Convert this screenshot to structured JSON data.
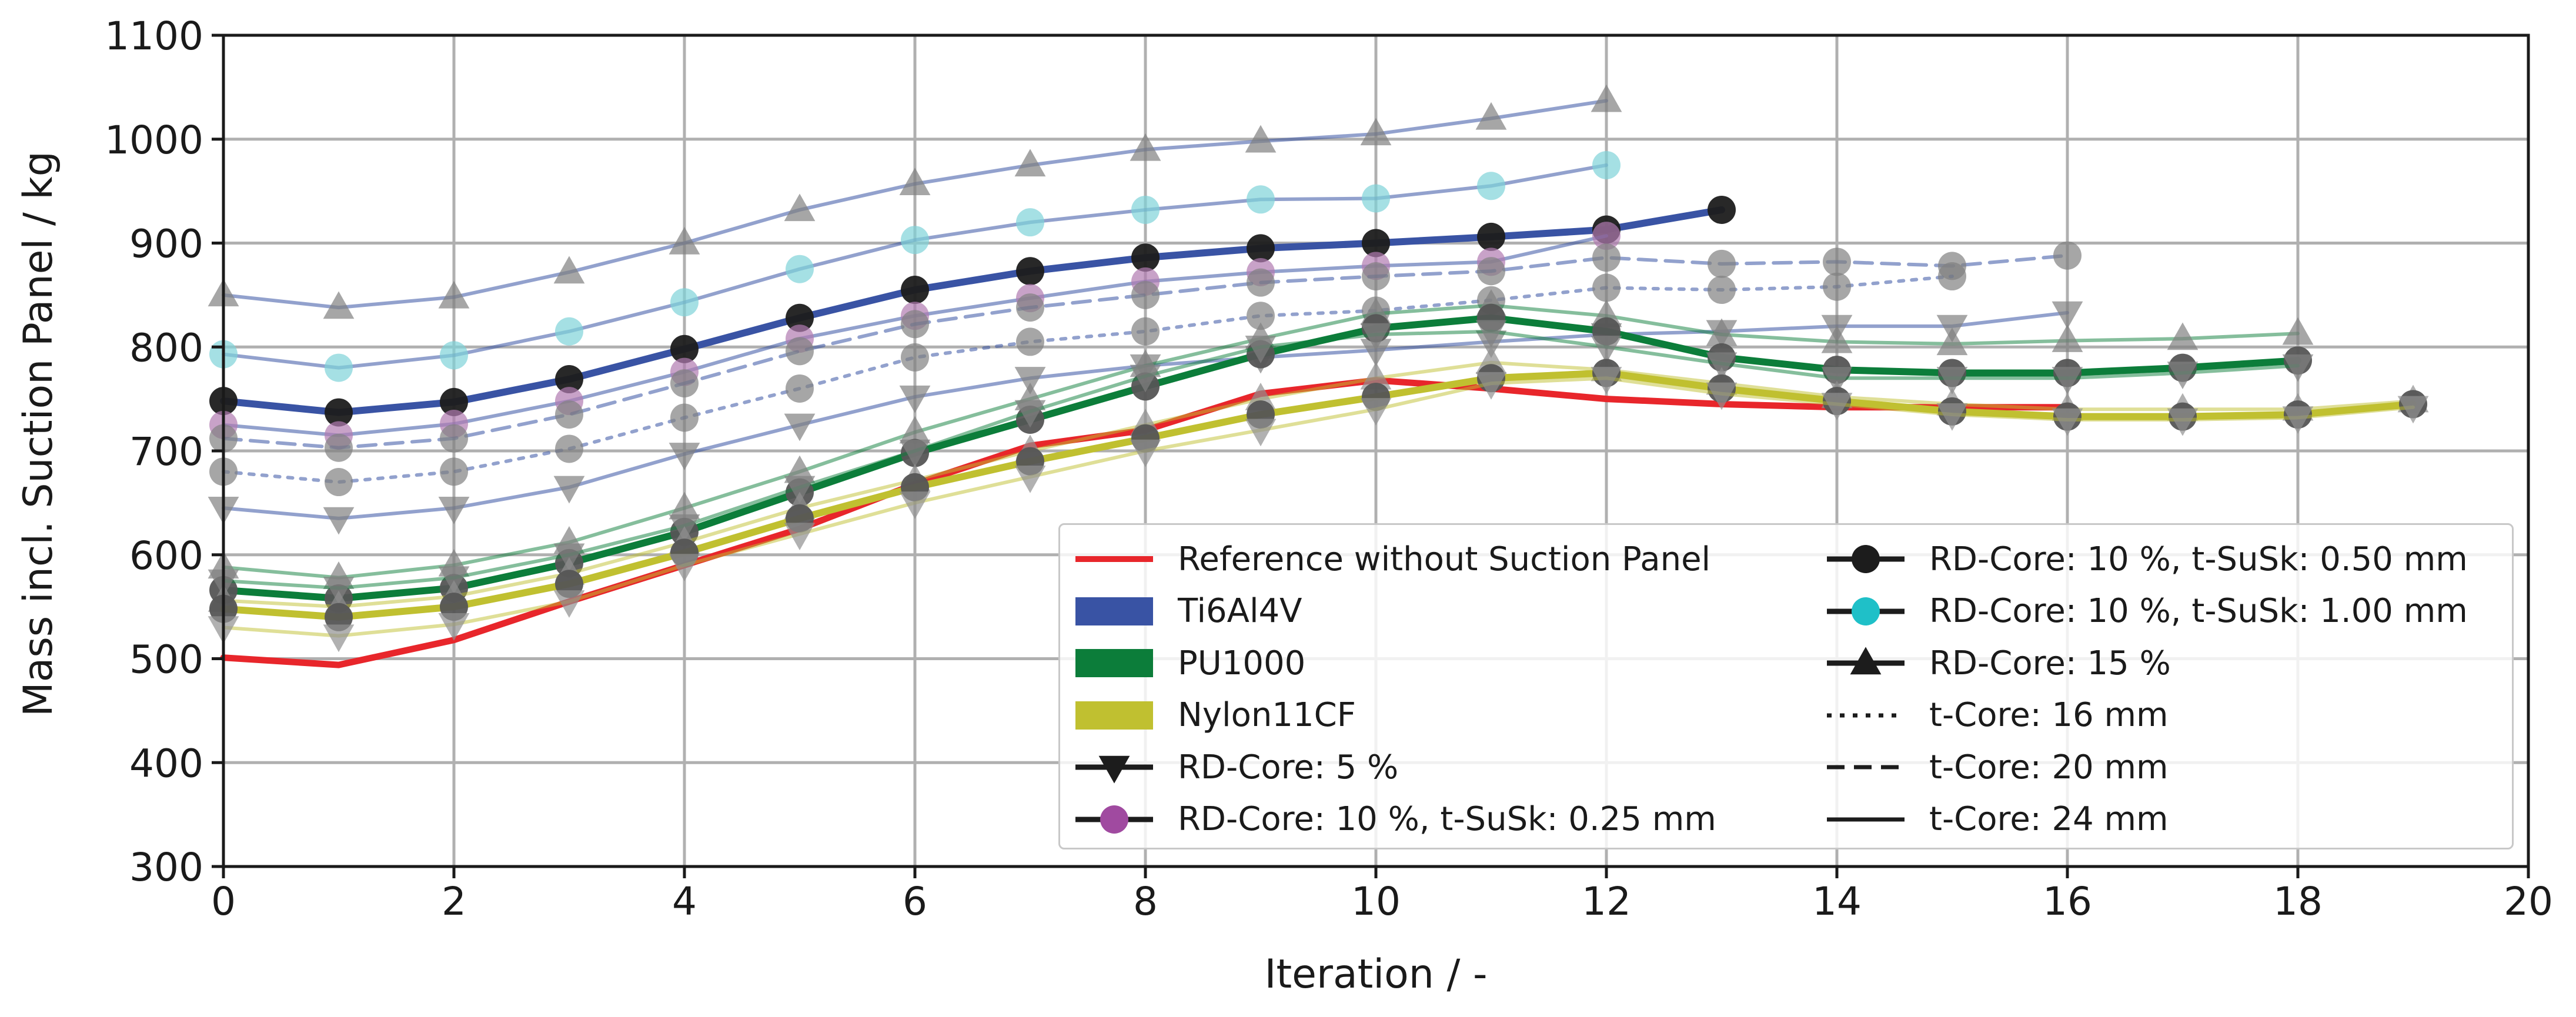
{
  "chart_data": {
    "type": "line",
    "title": "",
    "xlabel": "Iteration / -",
    "ylabel": "Mass incl. Suction Panel / kg",
    "xlim": [
      0,
      20
    ],
    "ylim": [
      300,
      1100
    ],
    "xticks": [
      0,
      2,
      4,
      6,
      8,
      10,
      12,
      14,
      16,
      18,
      20
    ],
    "yticks": [
      300,
      400,
      500,
      600,
      700,
      800,
      900,
      1000,
      1100
    ],
    "grid": true,
    "legend_position": "lower-right",
    "colors": {
      "reference": "#e8262b",
      "Ti6Al4V": "#3953a4",
      "PU1000": "#0c7d3a",
      "Nylon11CF": "#c0c030",
      "marker_grey": "#555555",
      "marker_black": "#1c1c1c",
      "marker_cyan": "#7fd3d8",
      "marker_purple": "#a04aa0"
    },
    "legend": [
      {
        "label": "Reference without Suction Panel",
        "kind": "line",
        "color": "#e8262b"
      },
      {
        "label": "Ti6Al4V",
        "kind": "patch",
        "color": "#3953a4"
      },
      {
        "label": "PU1000",
        "kind": "patch",
        "color": "#0c7d3a"
      },
      {
        "label": "Nylon11CF",
        "kind": "patch",
        "color": "#c0c030"
      },
      {
        "label": "RD-Core: 5 %",
        "kind": "marker",
        "marker": "tri_down",
        "color": "#1c1c1c"
      },
      {
        "label": "RD-Core: 10 %, t-SuSk: 0.25 mm",
        "kind": "marker",
        "marker": "circle",
        "color": "#a04aa0"
      },
      {
        "label": "RD-Core: 10 %, t-SuSk: 0.50 mm",
        "kind": "marker",
        "marker": "circle",
        "color": "#1c1c1c"
      },
      {
        "label": "RD-Core: 10 %, t-SuSk: 1.00 mm",
        "kind": "marker",
        "marker": "circle",
        "color": "#1fc0c8"
      },
      {
        "label": "RD-Core: 15 %",
        "kind": "marker",
        "marker": "tri_up",
        "color": "#1c1c1c"
      },
      {
        "label": "t-Core: 16 mm",
        "kind": "dash",
        "style": "dotted",
        "color": "#1c1c1c"
      },
      {
        "label": "t-Core: 20 mm",
        "kind": "dash",
        "style": "dashed",
        "color": "#1c1c1c"
      },
      {
        "label": "t-Core: 24 mm",
        "kind": "dash",
        "style": "solid",
        "color": "#1c1c1c"
      }
    ],
    "series": [
      {
        "name": "Reference without Suction Panel",
        "color": "#e8262b",
        "style": "solid",
        "width": 11,
        "alpha": 1,
        "marker": "none",
        "marker_fill": "none",
        "x": [
          0,
          1,
          2,
          3,
          4,
          5,
          6,
          7,
          8,
          9,
          10,
          11,
          12,
          13,
          14,
          15,
          16
        ],
        "y": [
          501,
          494,
          518,
          555,
          590,
          625,
          668,
          705,
          720,
          755,
          768,
          760,
          750,
          745,
          742,
          742,
          742
        ]
      },
      {
        "name": "Ti6Al4V RD-Core 15 % t-Core 24 mm",
        "color": "#3953a4",
        "style": "solid",
        "width": 6,
        "alpha": 0.55,
        "marker": "tri_up",
        "marker_fill": "#808080",
        "x": [
          0,
          1,
          2,
          3,
          4,
          5,
          6,
          7,
          8,
          9,
          10,
          11,
          12
        ],
        "y": [
          850,
          838,
          848,
          872,
          900,
          932,
          957,
          975,
          990,
          998,
          1005,
          1020,
          1037
        ]
      },
      {
        "name": "Ti6Al4V RD-Core 10 % t-SuSk 1.00 mm",
        "color": "#3953a4",
        "style": "solid",
        "width": 6,
        "alpha": 0.55,
        "marker": "circle",
        "marker_fill": "#7fd3d8",
        "x": [
          0,
          1,
          2,
          3,
          4,
          5,
          6,
          7,
          8,
          9,
          10,
          11,
          12
        ],
        "y": [
          793,
          780,
          792,
          815,
          843,
          875,
          903,
          920,
          932,
          942,
          943,
          955,
          975
        ]
      },
      {
        "name": "Ti6Al4V RD-Core 10 % t-SuSk 0.50 mm t-Core 24 mm",
        "color": "#3953a4",
        "style": "solid",
        "width": 12,
        "alpha": 1,
        "marker": "circle",
        "marker_fill": "#1c1c1c",
        "x": [
          0,
          1,
          2,
          3,
          4,
          5,
          6,
          7,
          8,
          9,
          10,
          11,
          12,
          13
        ],
        "y": [
          748,
          737,
          747,
          769,
          798,
          828,
          855,
          873,
          886,
          895,
          900,
          906,
          913,
          932
        ]
      },
      {
        "name": "Ti6Al4V RD-Core 10 % t-SuSk 0.25 mm",
        "color": "#3953a4",
        "style": "solid",
        "width": 6,
        "alpha": 0.55,
        "marker": "circle",
        "marker_fill": "#b07ab0",
        "x": [
          0,
          1,
          2,
          3,
          4,
          5,
          6,
          7,
          8,
          9,
          10,
          11,
          12
        ],
        "y": [
          725,
          715,
          726,
          748,
          776,
          808,
          830,
          847,
          863,
          872,
          878,
          882,
          907
        ]
      },
      {
        "name": "Ti6Al4V RD-Core 10 % t-Core 20 mm",
        "color": "#3953a4",
        "style": "dashed",
        "width": 6,
        "alpha": 0.55,
        "marker": "circle",
        "marker_fill": "#808080",
        "x": [
          0,
          1,
          2,
          3,
          4,
          5,
          6,
          7,
          8,
          9,
          10,
          11,
          12,
          13,
          14,
          15,
          16
        ],
        "y": [
          712,
          703,
          712,
          735,
          765,
          796,
          822,
          838,
          850,
          862,
          868,
          873,
          886,
          880,
          882,
          878,
          888
        ]
      },
      {
        "name": "Ti6Al4V RD-Core 10 % t-Core 16 mm",
        "color": "#3953a4",
        "style": "dotted",
        "width": 6,
        "alpha": 0.55,
        "marker": "circle",
        "marker_fill": "#808080",
        "x": [
          0,
          1,
          2,
          3,
          4,
          5,
          6,
          7,
          8,
          9,
          10,
          11,
          12,
          13,
          14,
          15
        ],
        "y": [
          680,
          670,
          680,
          702,
          732,
          760,
          790,
          805,
          815,
          830,
          835,
          845,
          857,
          855,
          858,
          868
        ]
      },
      {
        "name": "Ti6Al4V RD-Core 5 %",
        "color": "#3953a4",
        "style": "solid",
        "width": 6,
        "alpha": 0.55,
        "marker": "tri_down",
        "marker_fill": "#808080",
        "x": [
          0,
          1,
          2,
          3,
          4,
          5,
          6,
          7,
          8,
          9,
          10,
          11,
          12,
          13,
          14,
          15,
          16
        ],
        "y": [
          645,
          635,
          645,
          665,
          697,
          725,
          752,
          770,
          782,
          790,
          797,
          805,
          812,
          815,
          820,
          820,
          833
        ]
      },
      {
        "name": "PU1000 RD-Core 15 %",
        "color": "#0c7d3a",
        "style": "solid",
        "width": 6,
        "alpha": 0.5,
        "marker": "tri_up",
        "marker_fill": "#808080",
        "x": [
          0,
          1,
          2,
          3,
          4,
          5,
          6,
          7,
          8,
          9,
          10,
          11,
          12,
          13,
          14,
          15,
          16,
          17,
          18
        ],
        "y": [
          588,
          578,
          590,
          612,
          645,
          680,
          718,
          750,
          782,
          808,
          832,
          840,
          830,
          812,
          805,
          803,
          806,
          808,
          813
        ]
      },
      {
        "name": "PU1000 RD-Core 10 % t-SuSk 0.50 mm",
        "color": "#0c7d3a",
        "style": "solid",
        "width": 12,
        "alpha": 1,
        "marker": "circle",
        "marker_fill": "#555555",
        "x": [
          0,
          1,
          2,
          3,
          4,
          5,
          6,
          7,
          8,
          9,
          10,
          11,
          12,
          13,
          14,
          15,
          16,
          17,
          18
        ],
        "y": [
          566,
          558,
          568,
          592,
          622,
          660,
          698,
          730,
          762,
          793,
          818,
          828,
          815,
          790,
          778,
          775,
          775,
          780,
          787
        ]
      },
      {
        "name": "PU1000 RD-Core 5 %",
        "color": "#0c7d3a",
        "style": "solid",
        "width": 6,
        "alpha": 0.5,
        "marker": "tri_down",
        "marker_fill": "#808080",
        "x": [
          0,
          1,
          2,
          3,
          4,
          5,
          6,
          7,
          8,
          9,
          10,
          11,
          12,
          13,
          14,
          15,
          16,
          17,
          18
        ],
        "y": [
          575,
          568,
          578,
          600,
          628,
          665,
          700,
          738,
          772,
          800,
          812,
          815,
          800,
          784,
          770,
          770,
          770,
          775,
          782
        ]
      },
      {
        "name": "Nylon11CF RD-Core 15 %",
        "color": "#c0c030",
        "style": "solid",
        "width": 6,
        "alpha": 0.5,
        "marker": "tri_up",
        "marker_fill": "#909090",
        "x": [
          0,
          1,
          2,
          3,
          4,
          5,
          6,
          7,
          8,
          9,
          10,
          11,
          12,
          13,
          14,
          15,
          16,
          17,
          18,
          19
        ],
        "y": [
          556,
          550,
          560,
          582,
          612,
          645,
          672,
          700,
          725,
          750,
          770,
          785,
          778,
          765,
          752,
          745,
          740,
          740,
          740,
          748
        ]
      },
      {
        "name": "Nylon11CF RD-Core 10 % t-SuSk 0.50 mm",
        "color": "#c0c030",
        "style": "solid",
        "width": 12,
        "alpha": 1,
        "marker": "circle",
        "marker_fill": "#555555",
        "x": [
          0,
          1,
          2,
          3,
          4,
          5,
          6,
          7,
          8,
          9,
          10,
          11,
          12,
          13,
          14,
          15,
          16,
          17,
          18,
          19
        ],
        "y": [
          548,
          540,
          550,
          572,
          602,
          635,
          665,
          690,
          712,
          735,
          752,
          770,
          775,
          760,
          748,
          738,
          733,
          733,
          735,
          745
        ]
      },
      {
        "name": "Nylon11CF RD-Core 5 %",
        "color": "#c0c030",
        "style": "solid",
        "width": 6,
        "alpha": 0.5,
        "marker": "tri_down",
        "marker_fill": "#909090",
        "x": [
          0,
          1,
          2,
          3,
          4,
          5,
          6,
          7,
          8,
          9,
          10,
          11,
          12,
          13,
          14,
          15,
          16,
          17,
          18,
          19
        ],
        "y": [
          530,
          522,
          533,
          555,
          590,
          620,
          650,
          675,
          700,
          720,
          740,
          765,
          770,
          755,
          745,
          735,
          730,
          730,
          732,
          742
        ]
      }
    ]
  }
}
